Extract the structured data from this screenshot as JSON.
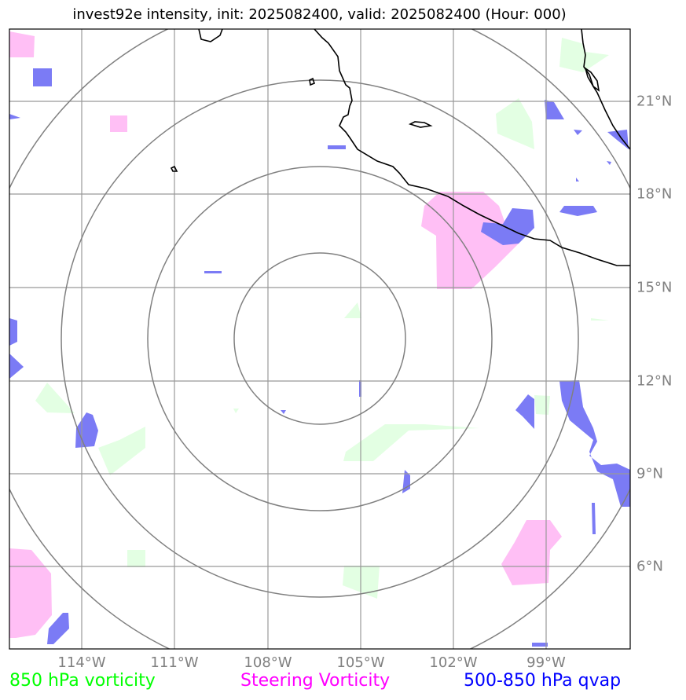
{
  "title": "invest92e intensity, init: 2025082400, valid: 2025082400 (Hour: 000)",
  "lon_labels": [
    "114°W",
    "111°W",
    "108°W",
    "105°W",
    "102°W",
    "99°W"
  ],
  "lat_labels": [
    "21°N",
    "18°N",
    "15°N",
    "12°N",
    "9°N",
    "6°N"
  ],
  "legend": {
    "vorticity_label": "850 hPa vorticity",
    "steering_label": "Steering Vorticity",
    "qvap_label": "500-850 hPa qvap"
  },
  "colors": {
    "vorticity": "#00ff00",
    "steering": "#ff00ff",
    "qvap": "#0000ff",
    "vorticity_fill": "#e3ffe3",
    "steering_fill": "#ffbff5",
    "qvap_fill": "#7b7bf5",
    "grid": "#999999",
    "rings": "#808080"
  }
}
